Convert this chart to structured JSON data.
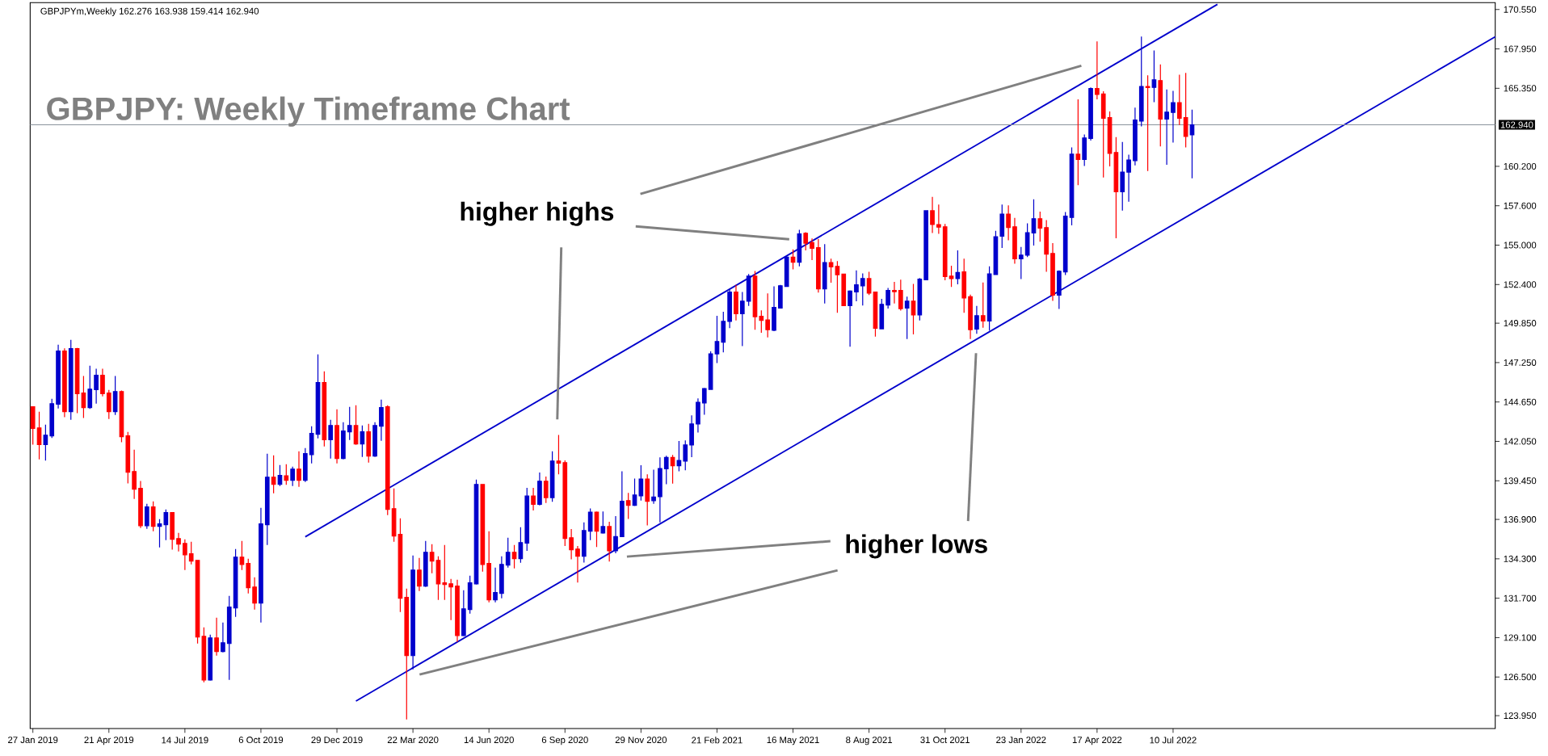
{
  "chart_data": {
    "type": "candlestick",
    "title": "GBPJPY: Weekly Timeframe Chart",
    "annotations": [
      "GBPJPYm,Weekly  162.276 163.938 159.414 162.940",
      "higher highs",
      "higher lows"
    ],
    "x": [
      "2019-01-27",
      "2019-02-03",
      "2019-02-10",
      "2019-02-17",
      "2019-02-24",
      "2019-03-03",
      "2019-03-10",
      "2019-03-17",
      "2019-03-24",
      "2019-03-31",
      "2019-04-07",
      "2019-04-14",
      "2019-04-21",
      "2019-04-28",
      "2019-05-05",
      "2019-05-12",
      "2019-05-19",
      "2019-05-26",
      "2019-06-02",
      "2019-06-09",
      "2019-06-16",
      "2019-06-23",
      "2019-06-30",
      "2019-07-07",
      "2019-07-14",
      "2019-07-21",
      "2019-07-28",
      "2019-08-04",
      "2019-08-11",
      "2019-08-18",
      "2019-08-25",
      "2019-09-01",
      "2019-09-08",
      "2019-09-15",
      "2019-09-22",
      "2019-09-29",
      "2019-10-06",
      "2019-10-13",
      "2019-10-20",
      "2019-10-27",
      "2019-11-03",
      "2019-11-10",
      "2019-11-17",
      "2019-11-24",
      "2019-12-01",
      "2019-12-08",
      "2019-12-15",
      "2019-12-22",
      "2019-12-29",
      "2020-01-05",
      "2020-01-12",
      "2020-01-19",
      "2020-01-26",
      "2020-02-02",
      "2020-02-09",
      "2020-02-16",
      "2020-02-23",
      "2020-03-01",
      "2020-03-08",
      "2020-03-15",
      "2020-03-22",
      "2020-03-29",
      "2020-04-05",
      "2020-04-12",
      "2020-04-19",
      "2020-04-26",
      "2020-05-03",
      "2020-05-10",
      "2020-05-17",
      "2020-05-24",
      "2020-05-31",
      "2020-06-07",
      "2020-06-14",
      "2020-06-21",
      "2020-06-28",
      "2020-07-05",
      "2020-07-12",
      "2020-07-19",
      "2020-07-26",
      "2020-08-02",
      "2020-08-09",
      "2020-08-16",
      "2020-08-23",
      "2020-08-30",
      "2020-09-06",
      "2020-09-13",
      "2020-09-20",
      "2020-09-27",
      "2020-10-04",
      "2020-10-11",
      "2020-10-18",
      "2020-10-25",
      "2020-11-01",
      "2020-11-08",
      "2020-11-15",
      "2020-11-22",
      "2020-11-29",
      "2020-12-06",
      "2020-12-13",
      "2020-12-20",
      "2020-12-27",
      "2021-01-03",
      "2021-01-10",
      "2021-01-17",
      "2021-01-24",
      "2021-01-31",
      "2021-02-07",
      "2021-02-14",
      "2021-02-21",
      "2021-02-28",
      "2021-03-07",
      "2021-03-14",
      "2021-03-21",
      "2021-03-28",
      "2021-04-04",
      "2021-04-11",
      "2021-04-18",
      "2021-04-25",
      "2021-05-02",
      "2021-05-09",
      "2021-05-16",
      "2021-05-23",
      "2021-05-30",
      "2021-06-06",
      "2021-06-13",
      "2021-06-20",
      "2021-06-27",
      "2021-07-04",
      "2021-07-11",
      "2021-07-18",
      "2021-07-25",
      "2021-08-01",
      "2021-08-08",
      "2021-08-15",
      "2021-08-22",
      "2021-08-29",
      "2021-09-05",
      "2021-09-12",
      "2021-09-19",
      "2021-09-26",
      "2021-10-03",
      "2021-10-10",
      "2021-10-17",
      "2021-10-24",
      "2021-10-31",
      "2021-11-07",
      "2021-11-14",
      "2021-11-21",
      "2021-11-28",
      "2021-12-05",
      "2021-12-12",
      "2021-12-19",
      "2021-12-26",
      "2022-01-02",
      "2022-01-09",
      "2022-01-16",
      "2022-01-23",
      "2022-01-30",
      "2022-02-06",
      "2022-02-13",
      "2022-02-20",
      "2022-02-27",
      "2022-03-06",
      "2022-03-13",
      "2022-03-20",
      "2022-03-27",
      "2022-04-03",
      "2022-04-10",
      "2022-04-17",
      "2022-04-24",
      "2022-05-01",
      "2022-05-08",
      "2022-05-15",
      "2022-05-22",
      "2022-05-29",
      "2022-06-05",
      "2022-06-12",
      "2022-06-19",
      "2022-06-26",
      "2022-07-03",
      "2022-07-10",
      "2022-07-17",
      "2022-07-24",
      "2022-07-31"
    ],
    "ohlc": [
      [
        144.33,
        144.37,
        141.84,
        142.91
      ],
      [
        142.94,
        144.01,
        140.86,
        141.84
      ],
      [
        141.84,
        143.16,
        140.78,
        142.46
      ],
      [
        142.41,
        144.86,
        142.27,
        144.54
      ],
      [
        144.51,
        148.43,
        144.22,
        148.01
      ],
      [
        148.01,
        148.19,
        143.65,
        144.01
      ],
      [
        144.01,
        148.75,
        143.48,
        148.17
      ],
      [
        148.17,
        148.22,
        143.92,
        145.2
      ],
      [
        145.24,
        146.36,
        143.6,
        144.28
      ],
      [
        144.28,
        147.05,
        144.19,
        145.5
      ],
      [
        145.47,
        146.84,
        144.54,
        146.41
      ],
      [
        146.41,
        146.84,
        145.02,
        145.2
      ],
      [
        145.24,
        145.45,
        143.53,
        144.01
      ],
      [
        144.01,
        146.36,
        143.8,
        145.34
      ],
      [
        145.34,
        145.4,
        142.0,
        142.36
      ],
      [
        142.41,
        142.68,
        139.27,
        140.01
      ],
      [
        140.06,
        141.5,
        138.25,
        138.89
      ],
      [
        138.95,
        139.43,
        136.33,
        136.49
      ],
      [
        136.49,
        137.93,
        136.28,
        137.72
      ],
      [
        137.72,
        138.09,
        136.12,
        136.44
      ],
      [
        136.44,
        136.92,
        135.05,
        136.6
      ],
      [
        136.55,
        137.56,
        135.53,
        137.35
      ],
      [
        137.35,
        137.35,
        134.9,
        135.59
      ],
      [
        135.64,
        136.01,
        134.79,
        135.27
      ],
      [
        135.32,
        135.59,
        133.56,
        134.57
      ],
      [
        134.63,
        135.43,
        133.93,
        134.15
      ],
      [
        134.2,
        134.2,
        128.71,
        129.14
      ],
      [
        129.19,
        129.78,
        126.15,
        126.31
      ],
      [
        126.31,
        129.3,
        126.26,
        129.08
      ],
      [
        129.08,
        130.42,
        127.91,
        128.18
      ],
      [
        128.18,
        130.1,
        128.12,
        128.76
      ],
      [
        128.71,
        131.86,
        126.31,
        131.11
      ],
      [
        131.06,
        134.95,
        130.47,
        134.41
      ],
      [
        134.41,
        135.48,
        133.56,
        133.93
      ],
      [
        133.99,
        134.31,
        132.02,
        132.39
      ],
      [
        132.44,
        133.08,
        130.95,
        131.38
      ],
      [
        131.38,
        137.67,
        130.1,
        136.6
      ],
      [
        136.55,
        141.24,
        135.21,
        139.69
      ],
      [
        139.69,
        141.13,
        138.63,
        139.21
      ],
      [
        139.21,
        140.49,
        139.11,
        139.8
      ],
      [
        139.78,
        140.54,
        139.18,
        139.48
      ],
      [
        139.48,
        140.38,
        139.11,
        140.22
      ],
      [
        140.22,
        141.4,
        139.05,
        139.48
      ],
      [
        139.48,
        141.61,
        139.37,
        141.24
      ],
      [
        141.18,
        143.05,
        140.6,
        142.57
      ],
      [
        142.52,
        147.79,
        142.25,
        145.93
      ],
      [
        145.93,
        146.67,
        141.72,
        142.16
      ],
      [
        142.16,
        143.48,
        140.92,
        143.1
      ],
      [
        143.1,
        144.17,
        140.6,
        140.92
      ],
      [
        140.92,
        143.32,
        140.86,
        142.73
      ],
      [
        142.68,
        144.33,
        142.14,
        143.1
      ],
      [
        143.1,
        144.44,
        141.82,
        141.88
      ],
      [
        141.88,
        143.1,
        141.02,
        142.68
      ],
      [
        142.68,
        143.21,
        140.65,
        141.08
      ],
      [
        141.08,
        143.32,
        141.02,
        143.1
      ],
      [
        143.05,
        144.81,
        142.09,
        144.28
      ],
      [
        144.33,
        144.44,
        137.19,
        137.56
      ],
      [
        137.61,
        138.95,
        135.43,
        135.8
      ],
      [
        135.91,
        136.97,
        130.79,
        131.7
      ],
      [
        131.75,
        132.33,
        123.7,
        127.91
      ],
      [
        127.91,
        134.52,
        127.0,
        133.56
      ],
      [
        133.56,
        134.36,
        132.18,
        132.5
      ],
      [
        132.5,
        135.48,
        132.44,
        134.73
      ],
      [
        134.73,
        135.27,
        133.35,
        134.15
      ],
      [
        134.2,
        134.47,
        131.59,
        132.65
      ],
      [
        132.71,
        135.21,
        131.59,
        132.6
      ],
      [
        132.65,
        132.97,
        130.26,
        132.44
      ],
      [
        132.5,
        132.92,
        128.82,
        129.24
      ],
      [
        129.24,
        132.23,
        129.19,
        131.0
      ],
      [
        130.95,
        133.19,
        130.68,
        132.71
      ],
      [
        132.65,
        139.53,
        132.6,
        139.21
      ],
      [
        139.21,
        139.21,
        133.45,
        133.93
      ],
      [
        133.99,
        136.12,
        131.43,
        131.59
      ],
      [
        131.59,
        133.72,
        131.43,
        132.07
      ],
      [
        132.02,
        134.47,
        131.7,
        133.93
      ],
      [
        133.88,
        135.69,
        133.72,
        134.73
      ],
      [
        134.73,
        135.21,
        133.67,
        134.31
      ],
      [
        134.31,
        136.39,
        134.04,
        135.37
      ],
      [
        135.34,
        138.98,
        134.83,
        138.44
      ],
      [
        138.44,
        138.98,
        137.49,
        137.89
      ],
      [
        137.89,
        139.99,
        137.83,
        139.42
      ],
      [
        139.42,
        139.73,
        137.99,
        138.34
      ],
      [
        138.34,
        141.4,
        138.06,
        140.75
      ],
      [
        140.75,
        142.48,
        139.87,
        140.61
      ],
      [
        140.65,
        140.79,
        135.14,
        135.65
      ],
      [
        135.69,
        136.26,
        134.26,
        134.9
      ],
      [
        134.94,
        135.14,
        132.73,
        134.47
      ],
      [
        134.47,
        136.71,
        134.06,
        136.16
      ],
      [
        136.12,
        137.63,
        135.53,
        137.38
      ],
      [
        137.38,
        137.42,
        135.08,
        136.12
      ],
      [
        136.0,
        137.42,
        135.96,
        136.43
      ],
      [
        136.43,
        136.75,
        134.12,
        134.83
      ],
      [
        134.83,
        137.12,
        134.67,
        135.77
      ],
      [
        135.77,
        140.08,
        135.73,
        138.1
      ],
      [
        138.14,
        138.65,
        136.93,
        137.83
      ],
      [
        137.83,
        139.59,
        137.79,
        138.51
      ],
      [
        138.45,
        140.48,
        138.14,
        139.57
      ],
      [
        139.57,
        139.87,
        136.51,
        138.1
      ],
      [
        138.14,
        140.18,
        137.93,
        138.38
      ],
      [
        138.4,
        140.99,
        136.71,
        140.26
      ],
      [
        140.24,
        141.1,
        139.22,
        140.99
      ],
      [
        140.99,
        141.16,
        139.26,
        140.44
      ],
      [
        140.44,
        142.08,
        140.08,
        140.79
      ],
      [
        140.75,
        142.12,
        140.14,
        141.81
      ],
      [
        141.81,
        143.77,
        141.01,
        143.2
      ],
      [
        143.2,
        144.89,
        142.63,
        144.63
      ],
      [
        144.59,
        145.58,
        143.81,
        145.54
      ],
      [
        145.48,
        147.99,
        145.44,
        147.83
      ],
      [
        147.83,
        150.34,
        147.22,
        148.64
      ],
      [
        148.6,
        150.6,
        147.93,
        149.97
      ],
      [
        149.97,
        152.11,
        149.52,
        151.91
      ],
      [
        151.91,
        152.38,
        150.03,
        150.48
      ],
      [
        150.48,
        151.91,
        148.34,
        151.3
      ],
      [
        151.3,
        153.09,
        150.99,
        152.95
      ],
      [
        152.95,
        153.3,
        149.42,
        150.28
      ],
      [
        150.3,
        150.7,
        149.22,
        150.03
      ],
      [
        150.07,
        151.81,
        148.91,
        149.42
      ],
      [
        149.38,
        152.28,
        149.32,
        150.89
      ],
      [
        150.85,
        152.38,
        150.81,
        152.32
      ],
      [
        152.28,
        154.32,
        152.24,
        154.21
      ],
      [
        154.21,
        154.72,
        153.4,
        153.87
      ],
      [
        153.87,
        156.01,
        153.6,
        155.74
      ],
      [
        155.78,
        155.85,
        154.66,
        155.13
      ],
      [
        155.17,
        155.44,
        154.01,
        154.79
      ],
      [
        154.83,
        155.4,
        151.87,
        152.11
      ],
      [
        152.11,
        155.07,
        151.15,
        153.85
      ],
      [
        153.85,
        154.11,
        152.52,
        153.56
      ],
      [
        153.6,
        153.95,
        150.54,
        153.05
      ],
      [
        153.09,
        153.09,
        150.99,
        151.01
      ],
      [
        151.01,
        152.01,
        148.3,
        151.97
      ],
      [
        151.91,
        153.34,
        151.3,
        152.38
      ],
      [
        152.32,
        153.13,
        151.01,
        152.79
      ],
      [
        152.79,
        153.24,
        151.71,
        151.83
      ],
      [
        151.91,
        151.91,
        148.97,
        149.52
      ],
      [
        149.48,
        151.46,
        149.46,
        151.09
      ],
      [
        151.05,
        152.17,
        150.81,
        152.01
      ],
      [
        152.01,
        152.58,
        151.15,
        151.93
      ],
      [
        152.01,
        152.72,
        150.68,
        150.81
      ],
      [
        150.85,
        151.6,
        148.81,
        151.3
      ],
      [
        151.3,
        152.44,
        149.11,
        150.4
      ],
      [
        150.4,
        152.83,
        150.03,
        152.75
      ],
      [
        152.72,
        157.27,
        152.68,
        157.27
      ],
      [
        157.27,
        158.19,
        155.8,
        156.36
      ],
      [
        156.36,
        157.68,
        155.74,
        156.19
      ],
      [
        156.21,
        156.4,
        152.68,
        152.93
      ],
      [
        152.95,
        153.64,
        152.24,
        152.79
      ],
      [
        152.79,
        154.66,
        152.42,
        153.19
      ],
      [
        153.24,
        154.11,
        150.54,
        151.52
      ],
      [
        151.6,
        151.73,
        148.81,
        149.42
      ],
      [
        149.46,
        150.99,
        149.15,
        150.34
      ],
      [
        150.35,
        152.53,
        149.55,
        149.99
      ],
      [
        149.99,
        153.6,
        149.37,
        153.1
      ],
      [
        153.06,
        155.94,
        153.03,
        155.55
      ],
      [
        155.59,
        157.68,
        154.81,
        157.05
      ],
      [
        157.05,
        157.63,
        155.32,
        156.17
      ],
      [
        156.21,
        156.8,
        153.78,
        154.1
      ],
      [
        154.1,
        154.88,
        152.76,
        154.34
      ],
      [
        154.34,
        156.44,
        154.22,
        155.82
      ],
      [
        155.8,
        158.02,
        154.98,
        156.74
      ],
      [
        156.74,
        157.21,
        155.23,
        156.12
      ],
      [
        156.16,
        156.65,
        153.24,
        154.4
      ],
      [
        154.45,
        155.14,
        151.32,
        151.7
      ],
      [
        151.7,
        153.33,
        150.79,
        153.28
      ],
      [
        153.24,
        157.19,
        153.03,
        156.92
      ],
      [
        156.83,
        161.45,
        156.3,
        161.0
      ],
      [
        161.0,
        164.62,
        158.96,
        160.65
      ],
      [
        160.65,
        162.3,
        160.23,
        162.07
      ],
      [
        162.04,
        165.41,
        161.9,
        165.33
      ],
      [
        165.33,
        168.44,
        164.62,
        164.94
      ],
      [
        164.97,
        165.15,
        159.46,
        163.37
      ],
      [
        163.41,
        163.82,
        160.2,
        161.06
      ],
      [
        161.11,
        162.13,
        155.46,
        158.52
      ],
      [
        158.52,
        161.81,
        157.28,
        159.82
      ],
      [
        159.82,
        160.97,
        157.86,
        160.62
      ],
      [
        160.58,
        164.08,
        160.26,
        163.25
      ],
      [
        163.19,
        168.76,
        162.84,
        165.47
      ],
      [
        165.47,
        166.21,
        159.89,
        165.4
      ],
      [
        165.41,
        167.85,
        164.44,
        165.91
      ],
      [
        165.86,
        166.92,
        161.51,
        163.32
      ],
      [
        163.32,
        165.27,
        160.31,
        163.78
      ],
      [
        163.76,
        165.18,
        161.77,
        164.4
      ],
      [
        164.4,
        166.25,
        162.93,
        163.37
      ],
      [
        163.41,
        166.36,
        161.45,
        162.18
      ],
      [
        162.276,
        163.938,
        159.414,
        162.94
      ]
    ],
    "colors": [
      "#ff0000",
      "#ff0000",
      "#0000cc",
      "#0000cc",
      "#0000cc",
      "#ff0000",
      "#0000cc",
      "#ff0000",
      "#ff0000",
      "#0000cc",
      "#0000cc",
      "#ff0000",
      "#ff0000",
      "#0000cc",
      "#ff0000",
      "#ff0000",
      "#ff0000",
      "#ff0000",
      "#0000cc",
      "#ff0000",
      "#0000cc",
      "#0000cc",
      "#ff0000",
      "#ff0000",
      "#ff0000",
      "#ff0000",
      "#ff0000",
      "#ff0000",
      "#0000cc",
      "#ff0000",
      "#0000cc",
      "#0000cc",
      "#0000cc",
      "#ff0000",
      "#ff0000",
      "#ff0000",
      "#0000cc",
      "#0000cc",
      "#ff0000",
      "#0000cc",
      "#ff0000",
      "#0000cc",
      "#ff0000",
      "#0000cc",
      "#0000cc",
      "#0000cc",
      "#ff0000",
      "#0000cc",
      "#ff0000",
      "#0000cc",
      "#0000cc",
      "#ff0000",
      "#0000cc",
      "#ff0000",
      "#0000cc",
      "#0000cc",
      "#ff0000",
      "#ff0000",
      "#ff0000",
      "#ff0000",
      "#0000cc",
      "#ff0000",
      "#0000cc",
      "#ff0000",
      "#ff0000",
      "#ff0000",
      "#ff0000",
      "#ff0000",
      "#0000cc",
      "#0000cc",
      "#0000cc",
      "#ff0000",
      "#ff0000",
      "#0000cc",
      "#0000cc",
      "#0000cc",
      "#ff0000",
      "#0000cc",
      "#0000cc",
      "#ff0000",
      "#0000cc",
      "#ff0000",
      "#0000cc",
      "#ff0000",
      "#ff0000",
      "#ff0000",
      "#ff0000",
      "#0000cc",
      "#0000cc",
      "#ff0000",
      "#0000cc",
      "#ff0000",
      "#0000cc",
      "#0000cc",
      "#ff0000",
      "#0000cc",
      "#0000cc",
      "#ff0000",
      "#0000cc",
      "#0000cc",
      "#0000cc",
      "#ff0000",
      "#0000cc",
      "#0000cc",
      "#0000cc",
      "#0000cc",
      "#0000cc",
      "#0000cc",
      "#0000cc",
      "#0000cc",
      "#0000cc",
      "#ff0000",
      "#0000cc",
      "#0000cc",
      "#ff0000",
      "#ff0000",
      "#ff0000",
      "#0000cc",
      "#0000cc",
      "#0000cc",
      "#ff0000",
      "#0000cc",
      "#ff0000",
      "#ff0000",
      "#ff0000",
      "#0000cc",
      "#ff0000",
      "#ff0000",
      "#ff0000",
      "#0000cc",
      "#0000cc",
      "#0000cc",
      "#ff0000",
      "#ff0000",
      "#0000cc",
      "#0000cc",
      "#ff0000",
      "#ff0000",
      "#0000cc",
      "#ff0000",
      "#0000cc",
      "#0000cc",
      "#ff0000",
      "#ff0000",
      "#ff0000",
      "#ff0000",
      "#0000cc",
      "#ff0000",
      "#ff0000",
      "#0000cc",
      "#ff0000",
      "#0000cc",
      "#0000cc",
      "#0000cc",
      "#ff0000",
      "#ff0000",
      "#0000cc",
      "#0000cc",
      "#0000cc",
      "#ff0000",
      "#ff0000",
      "#ff0000",
      "#0000cc",
      "#0000cc",
      "#0000cc",
      "#ff0000",
      "#0000cc",
      "#0000cc",
      "#ff0000",
      "#ff0000",
      "#ff0000",
      "#ff0000",
      "#0000cc",
      "#0000cc",
      "#0000cc",
      "#0000cc",
      "#ff0000",
      "#0000cc",
      "#ff0000",
      "#0000cc",
      "#0000cc",
      "#ff0000",
      "#ff0000",
      "#0000cc"
    ],
    "series": [
      {
        "type": "line",
        "color": "#0000cc",
        "x": [
          "2019-11-24",
          "2022-08-28"
        ],
        "values": [
          135.75,
          170.89
        ]
      },
      {
        "type": "line",
        "color": "#0000cc",
        "x": [
          "2020-01-19",
          "2023-07-01"
        ],
        "values": [
          124.91,
          168.75
        ]
      }
    ],
    "xlim": [
      "2019-01-24",
      "2023-07-01"
    ],
    "ylim": [
      123.1,
      171.0
    ],
    "xticks": [
      {
        "value": "2019-01-27",
        "label": "27 Jan 2019"
      },
      {
        "value": "2019-04-21",
        "label": "21 Apr 2019"
      },
      {
        "value": "2019-07-14",
        "label": "14 Jul 2019"
      },
      {
        "value": "2019-10-06",
        "label": "6 Oct 2019"
      },
      {
        "value": "2019-12-29",
        "label": "29 Dec 2019"
      },
      {
        "value": "2020-03-22",
        "label": "22 Mar 2020"
      },
      {
        "value": "2020-06-14",
        "label": "14 Jun 2020"
      },
      {
        "value": "2020-09-06",
        "label": "6 Sep 2020"
      },
      {
        "value": "2020-11-29",
        "label": "29 Nov 2020"
      },
      {
        "value": "2021-02-21",
        "label": "21 Feb 2021"
      },
      {
        "value": "2021-05-16",
        "label": "16 May 2021"
      },
      {
        "value": "2021-08-08",
        "label": "8 Aug 2021"
      },
      {
        "value": "2021-10-31",
        "label": "31 Oct 2021"
      },
      {
        "value": "2022-01-23",
        "label": "23 Jan 2022"
      },
      {
        "value": "2022-04-17",
        "label": "17 Apr 2022"
      },
      {
        "value": "2022-07-10",
        "label": "10 Jul 2022"
      }
    ],
    "yticks": [
      {
        "value": 123.95,
        "label": "123.950"
      },
      {
        "value": 126.5,
        "label": "126.500"
      },
      {
        "value": 129.1,
        "label": "129.100"
      },
      {
        "value": 131.7,
        "label": "131.700"
      },
      {
        "value": 134.3,
        "label": "134.300"
      },
      {
        "value": 136.9,
        "label": "136.900"
      },
      {
        "value": 139.45,
        "label": "139.450"
      },
      {
        "value": 142.05,
        "label": "142.050"
      },
      {
        "value": 144.65,
        "label": "144.650"
      },
      {
        "value": 147.25,
        "label": "147.250"
      },
      {
        "value": 149.85,
        "label": "149.850"
      },
      {
        "value": 152.4,
        "label": "152.400"
      },
      {
        "value": 155.0,
        "label": "155.000"
      },
      {
        "value": 157.6,
        "label": "157.600"
      },
      {
        "value": 160.2,
        "label": "160.200"
      },
      {
        "value": 165.35,
        "label": "165.350"
      },
      {
        "value": 167.95,
        "label": "167.950"
      },
      {
        "value": 170.55,
        "label": "170.550"
      }
    ],
    "ref_lines": [
      {
        "axis": "y",
        "value": 162.94,
        "label": "162.940",
        "color": "#8a929c"
      }
    ]
  }
}
